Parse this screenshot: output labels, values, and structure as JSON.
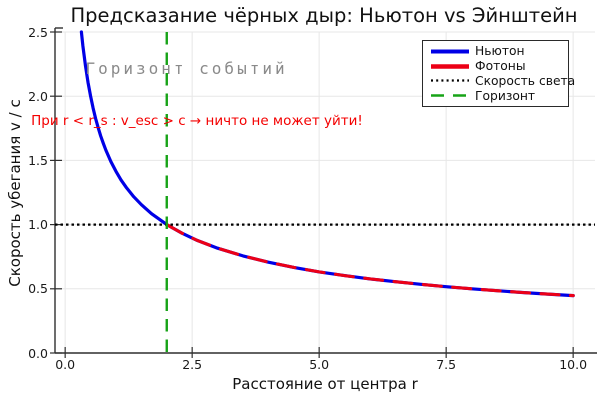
{
  "chart_data": {
    "type": "line",
    "title": "Предсказание чёрных дыр: Ньютон vs Эйнштейн",
    "xlabel": "Расстояние от центра r",
    "ylabel": "Скорость убегания v / c",
    "xlim": [
      -0.2,
      10.43
    ],
    "ylim": [
      0,
      2.5
    ],
    "grid": true,
    "grid_color": "#e7e7e7",
    "axis_color": "#2f2f2f",
    "xticks": {
      "values": [
        0,
        2.5,
        5,
        7.5,
        10
      ],
      "labels": [
        "0.0",
        "2.5",
        "5.0",
        "7.5",
        "10.0"
      ]
    },
    "yticks": {
      "values": [
        0,
        0.5,
        1,
        1.5,
        2,
        2.5
      ],
      "labels": [
        "0.0",
        "0.5",
        "1.0",
        "1.5",
        "2.0",
        "2.5"
      ]
    },
    "series": [
      {
        "name": "Ньютон",
        "kind": "curve",
        "color": "#0000e6",
        "line": "solid",
        "width": 3.2,
        "r": [
          0.32,
          0.35,
          0.4,
          0.45,
          0.5,
          0.55,
          0.6,
          0.65,
          0.7,
          0.75,
          0.8,
          0.9,
          1.0,
          1.1,
          1.2,
          1.35,
          1.5,
          1.7,
          2.0,
          2.3,
          2.6,
          3.0,
          3.5,
          4.0,
          4.5,
          5.0,
          5.5,
          6.0,
          6.5,
          7.0,
          7.5,
          8.0,
          8.5,
          9.0,
          9.5,
          10.0
        ],
        "v": [
          2.5,
          2.39,
          2.236,
          2.108,
          2.0,
          1.907,
          1.826,
          1.754,
          1.69,
          1.633,
          1.581,
          1.491,
          1.414,
          1.348,
          1.291,
          1.217,
          1.155,
          1.085,
          1.0,
          0.933,
          0.877,
          0.816,
          0.756,
          0.707,
          0.667,
          0.632,
          0.603,
          0.577,
          0.555,
          0.535,
          0.516,
          0.5,
          0.485,
          0.471,
          0.459,
          0.447
        ]
      },
      {
        "name": "Фотоны",
        "kind": "curve",
        "color": "#ec0016",
        "line": "dashed",
        "dash": [
          18,
          11.5
        ],
        "width": 3.1,
        "r": [
          2.0,
          2.3,
          2.6,
          3.0,
          3.5,
          4.0,
          4.5,
          5.0,
          5.5,
          6.0,
          6.5,
          7.0,
          7.5,
          8.0,
          8.5,
          9.0,
          9.5,
          10.0
        ],
        "v": [
          1.0,
          0.933,
          0.877,
          0.816,
          0.756,
          0.707,
          0.667,
          0.632,
          0.603,
          0.577,
          0.555,
          0.535,
          0.516,
          0.5,
          0.485,
          0.471,
          0.459,
          0.447
        ]
      },
      {
        "name": "Скорость света",
        "kind": "hline",
        "color": "#000000",
        "line": "dotted",
        "dash": [
          2.5,
          3
        ],
        "width": 2.2,
        "y": 1.0
      },
      {
        "name": "Горизонт",
        "kind": "vline",
        "color": "#17a317",
        "line": "dashed",
        "dash": [
          12.5,
          8
        ],
        "width": 2.4,
        "x": 2.0
      }
    ],
    "legend": {
      "position": "top-right",
      "entries": [
        {
          "label": "Ньютон",
          "color": "#0000e6",
          "width": 4,
          "dash": null
        },
        {
          "label": "Фотоны",
          "color": "#ec0016",
          "width": 4.4,
          "dash": null
        },
        {
          "label": "Скорость света",
          "color": "#000000",
          "width": 2.2,
          "dash": [
            2,
            3.2
          ]
        },
        {
          "label": "Горизонт",
          "color": "#17a317",
          "width": 2.6,
          "dash": [
            13,
            9
          ]
        }
      ]
    },
    "annotations": [
      {
        "id": "event-horizon-label",
        "text": "Горизонт событий",
        "x": 0.4,
        "y": 2.29,
        "color": "#8a8a8a",
        "font": "mono"
      },
      {
        "id": "no-escape-note",
        "text": "При r < r_s : v_esc > c → ничто не может уйти!",
        "x": -0.67,
        "y": 1.87,
        "color": "#f40000",
        "font": "sans"
      }
    ]
  }
}
